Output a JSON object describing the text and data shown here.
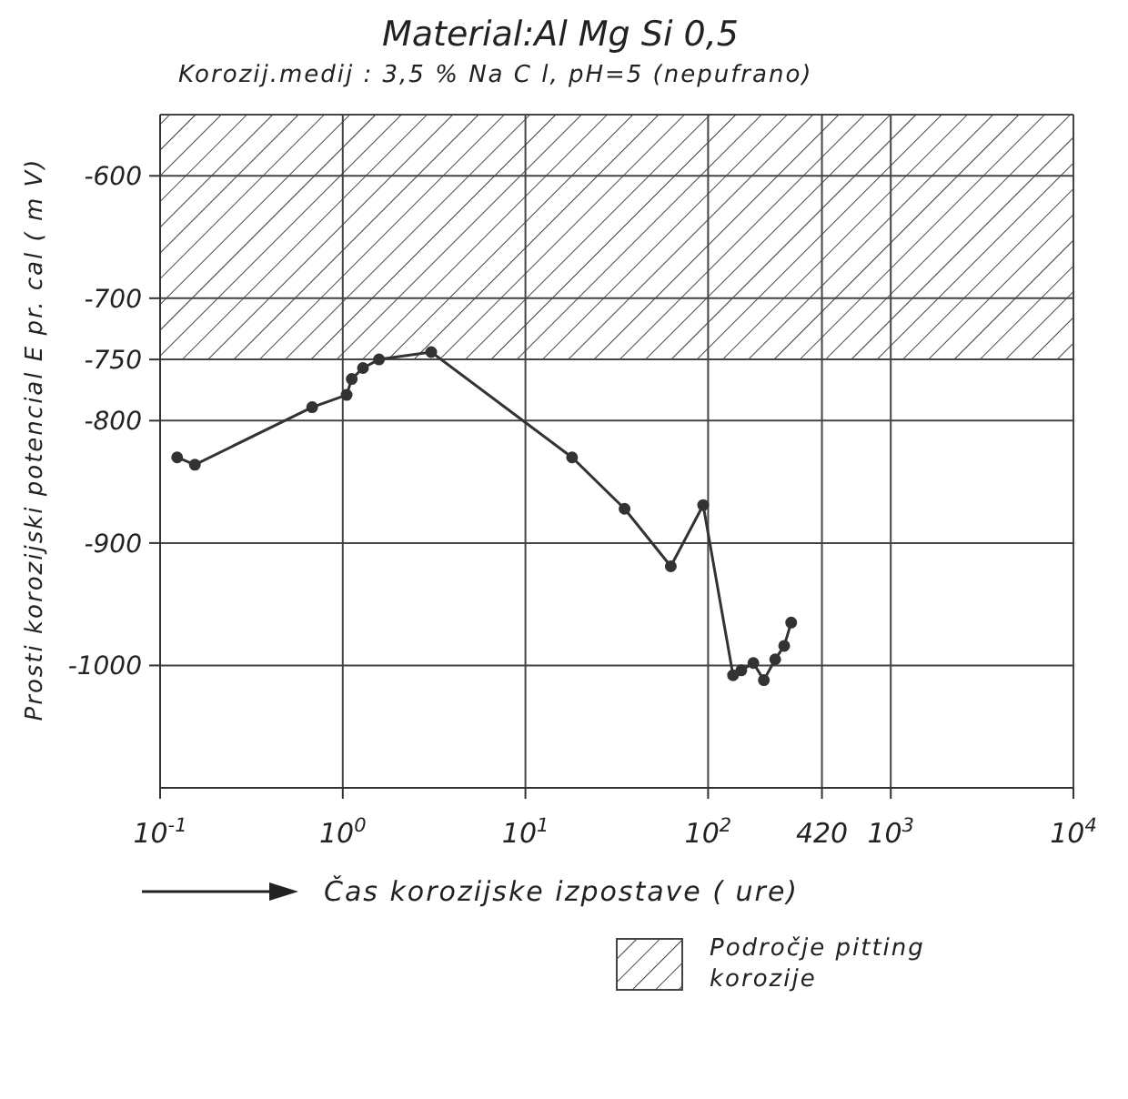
{
  "chart_data": {
    "type": "line",
    "title": "Material:Al Mg Si 0,5",
    "subtitle": "Korozij.medij : 3,5 % Na C l, pH=5 (nepufrano)",
    "xlabel": "Čas korozijske izpostave ( ure)",
    "ylabel": "Prosti korozijski potencial E pr. cal ( m V)",
    "log": "x",
    "xlim": [
      0.1,
      10000
    ],
    "xticks": [
      {
        "value": 0.1,
        "label": "10$^{-1}$"
      },
      {
        "value": 1,
        "label": "10$^{0}$"
      },
      {
        "value": 10,
        "label": "10$^{1}$"
      },
      {
        "value": 100,
        "label": "10$^{2}$"
      },
      420,
      {
        "value": 1000,
        "label": "10$^{3}$"
      },
      {
        "value": 10000,
        "label": "10$^{4}$"
      }
    ],
    "ylim": [
      -1100,
      -550
    ],
    "yticks": [
      -600,
      -700,
      -750,
      -800,
      -900,
      -1000
    ],
    "grid": true,
    "marker": "circle",
    "line_style": "solid",
    "series": [
      {
        "color": "#333333",
        "x": [
          0.124,
          0.155,
          0.68,
          1.05,
          1.12,
          1.29,
          1.58,
          3.05,
          18,
          34.9,
          62.5,
          94,
          137,
          152,
          177,
          202,
          233,
          261,
          285
        ],
        "values": [
          -830,
          -836,
          -789,
          -779,
          -766,
          -757,
          -750,
          -744,
          -830,
          -872,
          -919,
          -869,
          -1008,
          -1004,
          -998,
          -1012,
          -995,
          -984,
          -965
        ]
      }
    ],
    "bands": [
      {
        "axis": "y",
        "from": -750,
        "to": -550,
        "label": "Področje pitting korozije",
        "color": "#444444"
      }
    ]
  }
}
